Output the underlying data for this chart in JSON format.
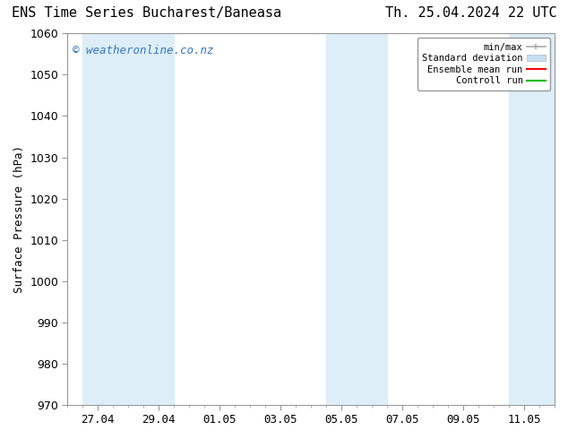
{
  "title_left": "ENS Time Series Bucharest/Baneasa",
  "title_right": "Th. 25.04.2024 22 UTC",
  "ylabel": "Surface Pressure (hPa)",
  "ylim": [
    970,
    1060
  ],
  "yticks": [
    970,
    980,
    990,
    1000,
    1010,
    1020,
    1030,
    1040,
    1050,
    1060
  ],
  "total_days": 16.0,
  "xtick_labels": [
    "27.04",
    "29.04",
    "01.05",
    "03.05",
    "05.05",
    "07.05",
    "09.05",
    "11.05"
  ],
  "xtick_positions_days": [
    1,
    3,
    5,
    7,
    9,
    11,
    13,
    15
  ],
  "bg_color": "#ffffff",
  "plot_bg_color": "#ffffff",
  "shading_color": "#ddeef8",
  "shading_bands": [
    {
      "start_day": 0.5,
      "end_day": 2.5
    },
    {
      "start_day": 2.5,
      "end_day": 3.5
    },
    {
      "start_day": 8.5,
      "end_day": 10.5
    },
    {
      "start_day": 14.5,
      "end_day": 16.0
    }
  ],
  "watermark_text": "© weatheronline.co.nz",
  "watermark_color": "#3377bb",
  "watermark_fontsize": 9,
  "legend_items": [
    {
      "label": "min/max",
      "color": "#aaaaaa",
      "style": "minmax"
    },
    {
      "label": "Standard deviation",
      "color": "#c8dff0",
      "style": "fill"
    },
    {
      "label": "Ensemble mean run",
      "color": "#ff0000",
      "style": "line"
    },
    {
      "label": "Controll run",
      "color": "#00bb00",
      "style": "line"
    }
  ],
  "title_fontsize": 11,
  "axis_label_fontsize": 9,
  "tick_fontsize": 9,
  "border_color": "#999999",
  "minor_tick_step": 0.5
}
